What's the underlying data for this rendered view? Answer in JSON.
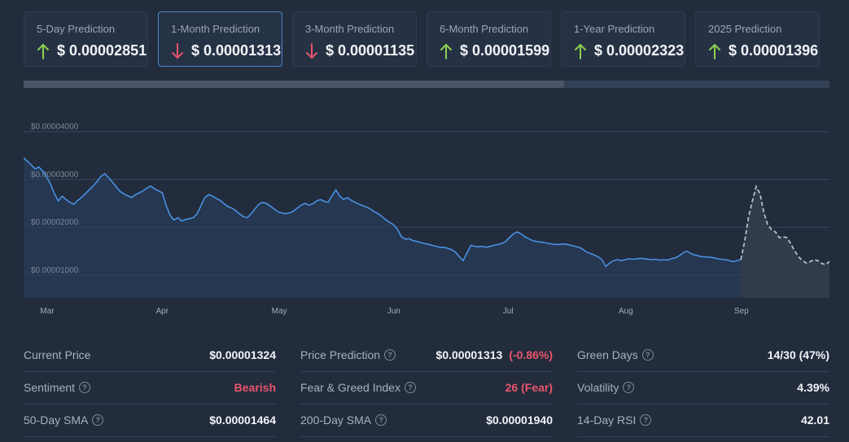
{
  "predictions": [
    {
      "label": "5-Day Prediction",
      "value": "$ 0.00002851",
      "direction": "up",
      "active": false
    },
    {
      "label": "1-Month Prediction",
      "value": "$ 0.00001313",
      "direction": "down",
      "active": true
    },
    {
      "label": "3-Month Prediction",
      "value": "$ 0.00001135",
      "direction": "down",
      "active": false
    },
    {
      "label": "6-Month Prediction",
      "value": "$ 0.00001599",
      "direction": "up",
      "active": false
    },
    {
      "label": "1-Year Prediction",
      "value": "$ 0.00002323",
      "direction": "up",
      "active": false
    },
    {
      "label": "2025 Prediction",
      "value": "$ 0.00001396",
      "direction": "up",
      "active": false
    }
  ],
  "colors": {
    "up": "#8fd14f",
    "down": "#e9546b",
    "line": "#4a90e2",
    "forecast": "#b8bec8"
  },
  "chart_data": {
    "type": "line",
    "ytick_labels": [
      "$0.00004000",
      "$0.00003000",
      "$0.00002000",
      "$0.00001000"
    ],
    "yticks": [
      4e-05,
      3e-05,
      2e-05,
      1e-05
    ],
    "ylim": [
      5.2e-06,
      4.37e-05
    ],
    "xtick_labels": [
      "Mar",
      "Apr",
      "May",
      "Jun",
      "Jul",
      "Aug",
      "Sep"
    ],
    "xlim": [
      0,
      209
    ],
    "xticks": [
      6,
      36,
      66,
      96,
      126,
      156,
      186
    ],
    "series": [
      {
        "style": "solid",
        "points": [
          [
            0,
            3.45e-05
          ],
          [
            1,
            3.38e-05
          ],
          [
            2,
            3.3e-05
          ],
          [
            3,
            3.22e-05
          ],
          [
            4,
            3.26e-05
          ],
          [
            5,
            3.17e-05
          ],
          [
            6,
            3.05e-05
          ],
          [
            7,
            2.9e-05
          ],
          [
            8,
            2.7e-05
          ],
          [
            9,
            2.55e-05
          ],
          [
            10,
            2.65e-05
          ],
          [
            11,
            2.58e-05
          ],
          [
            12,
            2.52e-05
          ],
          [
            13,
            2.48e-05
          ],
          [
            14,
            2.56e-05
          ],
          [
            15,
            2.62e-05
          ],
          [
            16,
            2.7e-05
          ],
          [
            17,
            2.78e-05
          ],
          [
            18,
            2.86e-05
          ],
          [
            19,
            2.95e-05
          ],
          [
            20,
            3.06e-05
          ],
          [
            21,
            3.12e-05
          ],
          [
            22,
            3.04e-05
          ],
          [
            23,
            2.95e-05
          ],
          [
            24,
            2.85e-05
          ],
          [
            25,
            2.75e-05
          ],
          [
            26,
            2.7e-05
          ],
          [
            27,
            2.66e-05
          ],
          [
            28,
            2.62e-05
          ],
          [
            29,
            2.68e-05
          ],
          [
            30,
            2.72e-05
          ],
          [
            31,
            2.76e-05
          ],
          [
            32,
            2.82e-05
          ],
          [
            33,
            2.86e-05
          ],
          [
            34,
            2.8e-05
          ],
          [
            35,
            2.76e-05
          ],
          [
            36,
            2.72e-05
          ],
          [
            37,
            2.45e-05
          ],
          [
            38,
            2.25e-05
          ],
          [
            39,
            2.15e-05
          ],
          [
            40,
            2.2e-05
          ],
          [
            41,
            2.13e-05
          ],
          [
            42,
            2.16e-05
          ],
          [
            43,
            2.18e-05
          ],
          [
            44,
            2.2e-05
          ],
          [
            45,
            2.28e-05
          ],
          [
            46,
            2.45e-05
          ],
          [
            47,
            2.62e-05
          ],
          [
            48,
            2.68e-05
          ],
          [
            49,
            2.65e-05
          ],
          [
            50,
            2.6e-05
          ],
          [
            51,
            2.56e-05
          ],
          [
            52,
            2.49e-05
          ],
          [
            53,
            2.43e-05
          ],
          [
            54,
            2.4e-05
          ],
          [
            55,
            2.35e-05
          ],
          [
            56,
            2.28e-05
          ],
          [
            57,
            2.22e-05
          ],
          [
            58,
            2.2e-05
          ],
          [
            59,
            2.28e-05
          ],
          [
            60,
            2.38e-05
          ],
          [
            61,
            2.48e-05
          ],
          [
            62,
            2.52e-05
          ],
          [
            63,
            2.5e-05
          ],
          [
            64,
            2.44e-05
          ],
          [
            65,
            2.38e-05
          ],
          [
            66,
            2.32e-05
          ],
          [
            67,
            2.3e-05
          ],
          [
            68,
            2.28e-05
          ],
          [
            69,
            2.3e-05
          ],
          [
            70,
            2.34e-05
          ],
          [
            71,
            2.4e-05
          ],
          [
            72,
            2.46e-05
          ],
          [
            73,
            2.5e-05
          ],
          [
            74,
            2.46e-05
          ],
          [
            75,
            2.49e-05
          ],
          [
            76,
            2.55e-05
          ],
          [
            77,
            2.58e-05
          ],
          [
            78,
            2.54e-05
          ],
          [
            79,
            2.52e-05
          ],
          [
            80,
            2.66e-05
          ],
          [
            81,
            2.78e-05
          ],
          [
            82,
            2.65e-05
          ],
          [
            83,
            2.58e-05
          ],
          [
            84,
            2.62e-05
          ],
          [
            85,
            2.56e-05
          ],
          [
            86,
            2.52e-05
          ],
          [
            87,
            2.48e-05
          ],
          [
            88,
            2.45e-05
          ],
          [
            89,
            2.42e-05
          ],
          [
            90,
            2.38e-05
          ],
          [
            91,
            2.32e-05
          ],
          [
            92,
            2.28e-05
          ],
          [
            93,
            2.22e-05
          ],
          [
            94,
            2.15e-05
          ],
          [
            95,
            2.1e-05
          ],
          [
            96,
            2.05e-05
          ],
          [
            97,
            1.95e-05
          ],
          [
            98,
            1.8e-05
          ],
          [
            99,
            1.75e-05
          ],
          [
            100,
            1.76e-05
          ],
          [
            101,
            1.72e-05
          ],
          [
            102,
            1.7e-05
          ],
          [
            103,
            1.68e-05
          ],
          [
            104,
            1.66e-05
          ],
          [
            105,
            1.64e-05
          ],
          [
            106,
            1.62e-05
          ],
          [
            107,
            1.6e-05
          ],
          [
            108,
            1.58e-05
          ],
          [
            109,
            1.58e-05
          ],
          [
            110,
            1.56e-05
          ],
          [
            111,
            1.53e-05
          ],
          [
            112,
            1.48e-05
          ],
          [
            113,
            1.38e-05
          ],
          [
            114,
            1.3e-05
          ],
          [
            115,
            1.46e-05
          ],
          [
            116,
            1.62e-05
          ],
          [
            117,
            1.6e-05
          ],
          [
            118,
            1.59e-05
          ],
          [
            119,
            1.6e-05
          ],
          [
            120,
            1.58e-05
          ],
          [
            121,
            1.6e-05
          ],
          [
            122,
            1.62e-05
          ],
          [
            123,
            1.64e-05
          ],
          [
            124,
            1.66e-05
          ],
          [
            125,
            1.7e-05
          ],
          [
            126,
            1.78e-05
          ],
          [
            127,
            1.86e-05
          ],
          [
            128,
            1.9e-05
          ],
          [
            129,
            1.86e-05
          ],
          [
            130,
            1.8e-05
          ],
          [
            131,
            1.76e-05
          ],
          [
            132,
            1.72e-05
          ],
          [
            133,
            1.7e-05
          ],
          [
            134,
            1.69e-05
          ],
          [
            135,
            1.68e-05
          ],
          [
            136,
            1.66e-05
          ],
          [
            137,
            1.65e-05
          ],
          [
            138,
            1.64e-05
          ],
          [
            139,
            1.64e-05
          ],
          [
            140,
            1.65e-05
          ],
          [
            141,
            1.64e-05
          ],
          [
            142,
            1.62e-05
          ],
          [
            143,
            1.6e-05
          ],
          [
            144,
            1.58e-05
          ],
          [
            145,
            1.54e-05
          ],
          [
            146,
            1.48e-05
          ],
          [
            147,
            1.45e-05
          ],
          [
            148,
            1.42e-05
          ],
          [
            149,
            1.38e-05
          ],
          [
            150,
            1.32e-05
          ],
          [
            151,
            1.18e-05
          ],
          [
            152,
            1.25e-05
          ],
          [
            153,
            1.3e-05
          ],
          [
            154,
            1.32e-05
          ],
          [
            155,
            1.3e-05
          ],
          [
            156,
            1.32e-05
          ],
          [
            157,
            1.34e-05
          ],
          [
            158,
            1.33e-05
          ],
          [
            159,
            1.34e-05
          ],
          [
            160,
            1.35e-05
          ],
          [
            161,
            1.34e-05
          ],
          [
            162,
            1.33e-05
          ],
          [
            163,
            1.32e-05
          ],
          [
            164,
            1.33e-05
          ],
          [
            165,
            1.31e-05
          ],
          [
            166,
            1.32e-05
          ],
          [
            167,
            1.31e-05
          ],
          [
            168,
            1.34e-05
          ],
          [
            169,
            1.36e-05
          ],
          [
            170,
            1.4e-05
          ],
          [
            171,
            1.46e-05
          ],
          [
            172,
            1.5e-05
          ],
          [
            173,
            1.45e-05
          ],
          [
            174,
            1.42e-05
          ],
          [
            175,
            1.4e-05
          ],
          [
            176,
            1.38e-05
          ],
          [
            177,
            1.38e-05
          ],
          [
            178,
            1.37e-05
          ],
          [
            179,
            1.36e-05
          ],
          [
            180,
            1.34e-05
          ],
          [
            181,
            1.33e-05
          ],
          [
            182,
            1.32e-05
          ],
          [
            183,
            1.3e-05
          ],
          [
            184,
            1.28e-05
          ],
          [
            185,
            1.3e-05
          ],
          [
            186,
            1.32e-05
          ]
        ]
      },
      {
        "style": "dashed",
        "points": [
          [
            186,
            1.32e-05
          ],
          [
            187,
            1.7e-05
          ],
          [
            188,
            2.2e-05
          ],
          [
            189,
            2.55e-05
          ],
          [
            190,
            2.85e-05
          ],
          [
            191,
            2.7e-05
          ],
          [
            192,
            2.3e-05
          ],
          [
            193,
            2.05e-05
          ],
          [
            194,
            1.95e-05
          ],
          [
            195,
            1.9e-05
          ],
          [
            196,
            1.78e-05
          ],
          [
            197,
            1.8e-05
          ],
          [
            198,
            1.78e-05
          ],
          [
            199,
            1.65e-05
          ],
          [
            200,
            1.5e-05
          ],
          [
            201,
            1.38e-05
          ],
          [
            202,
            1.3e-05
          ],
          [
            203,
            1.25e-05
          ],
          [
            204,
            1.28e-05
          ],
          [
            205,
            1.32e-05
          ],
          [
            206,
            1.3e-05
          ],
          [
            207,
            1.24e-05
          ],
          [
            208,
            1.22e-05
          ],
          [
            209,
            1.28e-05
          ]
        ]
      }
    ]
  },
  "stats": [
    [
      {
        "label": "Current Price",
        "value": "$0.00001324",
        "help": false
      },
      {
        "label": "Sentiment",
        "value": "Bearish",
        "help": true,
        "color": "red"
      },
      {
        "label": "50-Day SMA",
        "value": "$0.00001464",
        "help": true
      }
    ],
    [
      {
        "label": "Price Prediction",
        "value": "$0.00001313",
        "extra": "(-0.86%)",
        "help": true
      },
      {
        "label": "Fear & Greed Index",
        "value": "26 (Fear)",
        "help": true,
        "color": "red"
      },
      {
        "label": "200-Day SMA",
        "value": "$0.00001940",
        "help": true
      }
    ],
    [
      {
        "label": "Green Days",
        "value": "14/30 (47%)",
        "help": true
      },
      {
        "label": "Volatility",
        "value": "4.39%",
        "help": true
      },
      {
        "label": "14-Day RSI",
        "value": "42.01",
        "help": true
      }
    ]
  ],
  "help_glyph": "?"
}
